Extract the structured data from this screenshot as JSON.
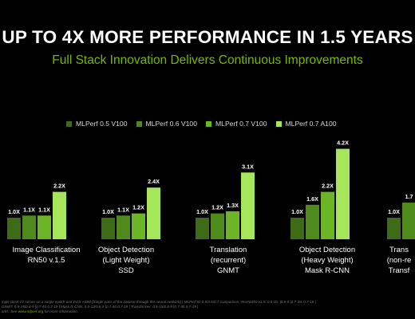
{
  "header": {
    "title": "UP TO 4X MORE PERFORMANCE IN 1.5 YEARS",
    "subtitle": "Full Stack Innovation Delivers Continuous Improvements"
  },
  "legend": [
    {
      "label": "MLPerf 0.5 V100",
      "color": "#3d6b16"
    },
    {
      "label": "MLPerf 0.6 V100",
      "color": "#4e8a1c"
    },
    {
      "label": "MLPerf 0.7 V100",
      "color": "#6cb526"
    },
    {
      "label": "MLPerf 0.7 A100",
      "color": "#a5e65a"
    }
  ],
  "chart_data": {
    "type": "bar",
    "title": "UP TO 4X MORE PERFORMANCE IN 1.5 YEARS",
    "subtitle": "Full Stack Innovation Delivers Continuous Improvements",
    "xlabel": "",
    "ylabel": "",
    "ylim": [
      0,
      4.4
    ],
    "grid": false,
    "legend_position": "top",
    "categories": [
      {
        "lines": [
          "Image Classification",
          "RN50 v.1.5"
        ]
      },
      {
        "lines": [
          "Object Detection",
          "(Light Weight)",
          "SSD"
        ]
      },
      {
        "lines": [
          "Translation",
          "(recurrent)",
          "GNMT"
        ]
      },
      {
        "lines": [
          "Object Detection",
          "(Heavy Weight)",
          "Mask R-CNN"
        ]
      },
      {
        "lines": [
          "Trans",
          "(non-re",
          "Transf"
        ]
      }
    ],
    "series": [
      {
        "name": "MLPerf 0.5 V100",
        "color": "#3d6b16",
        "values": [
          1.0,
          1.0,
          1.0,
          1.0,
          1.0
        ],
        "labels": [
          "1.0X",
          "1.0X",
          "1.0X",
          "1.0X",
          "1.0X"
        ]
      },
      {
        "name": "MLPerf 0.6 V100",
        "color": "#4e8a1c",
        "values": [
          1.1,
          1.1,
          1.2,
          1.6,
          1.7
        ],
        "labels": [
          "1.1X",
          "1.1X",
          "1.2X",
          "1.6X",
          "1.7"
        ]
      },
      {
        "name": "MLPerf 0.7 V100",
        "color": "#6cb526",
        "values": [
          1.1,
          1.2,
          1.3,
          2.2,
          null
        ],
        "labels": [
          "1.1X",
          "1.2X",
          "1.3X",
          "2.2X",
          null
        ]
      },
      {
        "name": "MLPerf 0.7 A100",
        "color": "#a5e65a",
        "values": [
          2.2,
          2.4,
          3.1,
          4.2,
          null
        ],
        "labels": [
          "2.2X",
          "2.4X",
          "3.1X",
          "4.2X",
          null
        ]
      }
    ]
  },
  "footnote": {
    "lines": [
      "ingle DGX-1V server on a single epoch and DGX-A100 (Single pass of the dataset through the neural network) | MLPerf ID 0.5/0.6/0.7 comparison: ResNet50 v1.5: 0.5-10, |0.6-8 |0.7-39, 0.7-18 |",
      "GNMT: 0.5-15/0.6-9 |0.7-40 0.7-19 |   Mask R-CNN: 0.5-13/0.6-9 |0.7-40 0.7-19 |   Transformer: 0.5-15/0.6-9 |0.7-40 0.7-19 |"
    ],
    "trail_text": "arks. See ",
    "link_text": "www.mlperf.org",
    "end_text": " for more information."
  }
}
